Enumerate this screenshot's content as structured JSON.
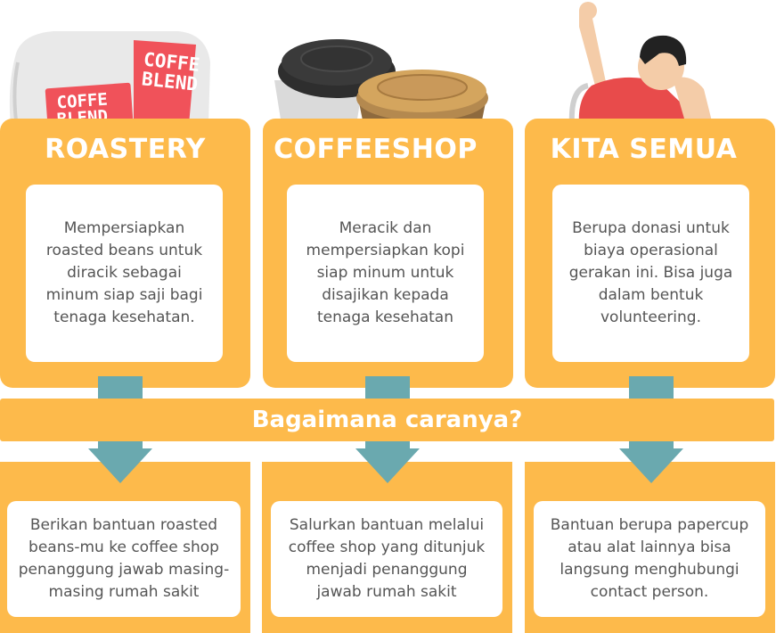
{
  "columns": [
    {
      "title": "ROASTERY",
      "description": "Mempersiapkan roasted beans untuk diracik sebagai minum siap saji bagi tenaga kesehatan.",
      "action": "Berikan bantuan roasted beans-mu ke coffee shop penanggung jawab masing-masing rumah sakit",
      "illustration": "coffee-bag-icon",
      "illustration_text": [
        "COFFE",
        "BLEND"
      ]
    },
    {
      "title": "COFFEESHOP",
      "description": "Meracik dan mempersiapkan kopi siap minum untuk disajikan kepada tenaga kesehatan",
      "action": "Salurkan bantuan melalui coffee shop yang ditunjuk menjadi penanggung jawab rumah sakit",
      "illustration": "coffee-cups-icon"
    },
    {
      "title": "KITA SEMUA",
      "description": "Berupa donasi untuk biaya operasional gerakan ini. Bisa juga dalam bentuk volunteering.",
      "action": "Bantuan berupa papercup atau alat lainnya bisa langsung menghubungi contact person.",
      "illustration": "cheering-person-icon"
    }
  ],
  "banner": {
    "text": "Bagaimana caranya?"
  },
  "colors": {
    "card": "#FDBA4B",
    "arrow": "#6AA9AF",
    "text": "#555555",
    "title": "#ffffff"
  }
}
